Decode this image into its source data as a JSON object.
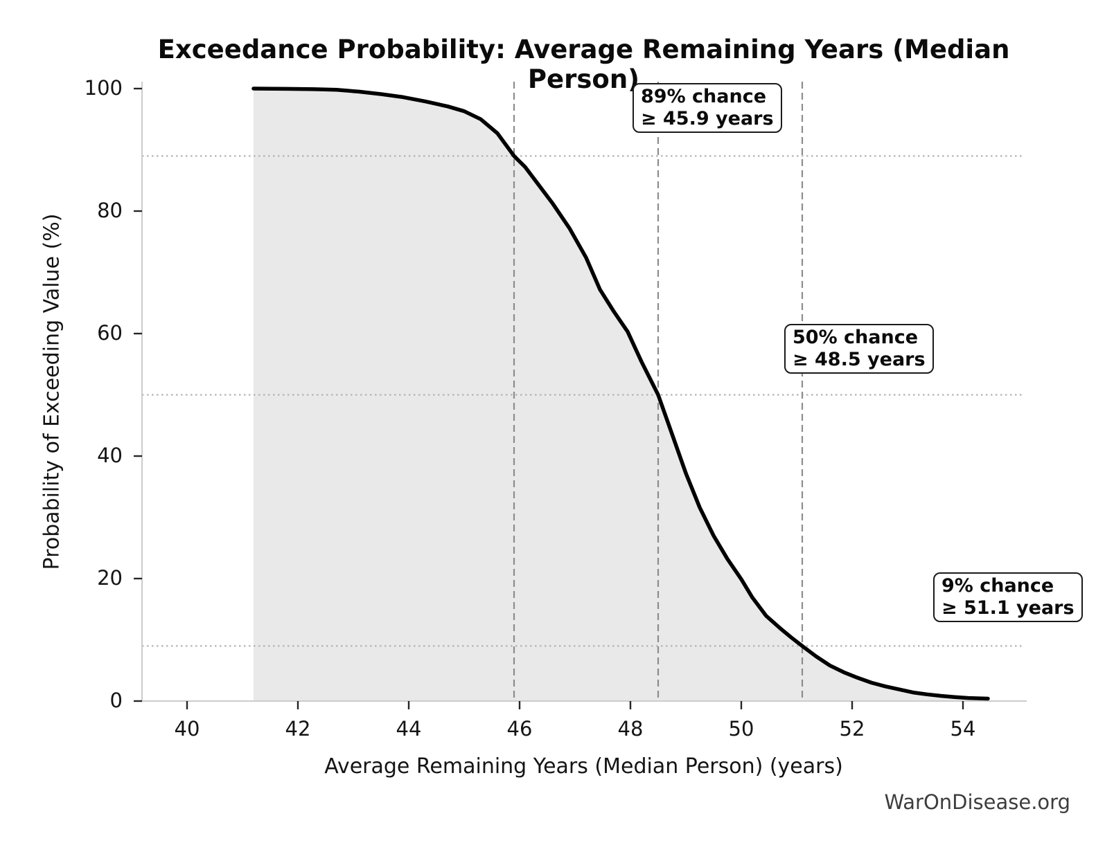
{
  "title": "Exceedance Probability: Average Remaining Years (Median Person)",
  "footer": "WarOnDisease.org",
  "chart_data": {
    "type": "area",
    "title": "Exceedance Probability: Average Remaining Years (Median Person)",
    "xlabel": "Average Remaining Years (Median Person) (years)",
    "ylabel": "Probability of Exceeding Value (%)",
    "xlim": [
      39.2,
      55.1
    ],
    "ylim": [
      0,
      101
    ],
    "x_ticks": [
      40,
      42,
      44,
      46,
      48,
      50,
      52,
      54
    ],
    "y_ticks": [
      0,
      20,
      40,
      60,
      80,
      100
    ],
    "grid": "off",
    "legend": "none",
    "line_color": "#000000",
    "fill_color": "#e9e9e9",
    "dashed_line_color": "#8c8c8c",
    "dotted_line_color": "#b3b3b3",
    "spine_color": "#cccccc",
    "curve": {
      "name": "exceedance probability",
      "x_units": "years",
      "y_units": "percent",
      "points": [
        [
          41.2,
          100
        ],
        [
          41.8,
          99.95
        ],
        [
          42.3,
          99.9
        ],
        [
          42.7,
          99.8
        ],
        [
          43.1,
          99.5
        ],
        [
          43.5,
          99.1
        ],
        [
          43.9,
          98.6
        ],
        [
          44.3,
          97.9
        ],
        [
          44.7,
          97.1
        ],
        [
          45.0,
          96.3
        ],
        [
          45.3,
          95.0
        ],
        [
          45.6,
          92.7
        ],
        [
          45.9,
          89.0
        ],
        [
          46.1,
          87.2
        ],
        [
          46.35,
          84.2
        ],
        [
          46.6,
          81.2
        ],
        [
          46.9,
          77.2
        ],
        [
          47.2,
          72.4
        ],
        [
          47.45,
          67.2
        ],
        [
          47.7,
          63.6
        ],
        [
          47.95,
          60.3
        ],
        [
          48.2,
          55.4
        ],
        [
          48.5,
          50.0
        ],
        [
          48.75,
          43.6
        ],
        [
          49.0,
          37.2
        ],
        [
          49.25,
          31.6
        ],
        [
          49.5,
          27.0
        ],
        [
          49.75,
          23.2
        ],
        [
          50.0,
          19.9
        ],
        [
          50.2,
          16.9
        ],
        [
          50.45,
          13.9
        ],
        [
          50.7,
          11.9
        ],
        [
          50.9,
          10.4
        ],
        [
          51.1,
          9.0
        ],
        [
          51.35,
          7.3
        ],
        [
          51.6,
          5.8
        ],
        [
          51.85,
          4.7
        ],
        [
          52.1,
          3.8
        ],
        [
          52.35,
          3.0
        ],
        [
          52.6,
          2.4
        ],
        [
          52.85,
          1.9
        ],
        [
          53.1,
          1.4
        ],
        [
          53.35,
          1.1
        ],
        [
          53.6,
          0.85
        ],
        [
          53.85,
          0.65
        ],
        [
          54.1,
          0.5
        ],
        [
          54.45,
          0.4
        ]
      ]
    },
    "reference_lines": [
      {
        "value_years": 45.9,
        "probability_pct": 89
      },
      {
        "value_years": 48.5,
        "probability_pct": 50
      },
      {
        "value_years": 51.1,
        "probability_pct": 9
      }
    ],
    "annotations": [
      {
        "line1": "89% chance",
        "line2": "≥ 45.9 years"
      },
      {
        "line1": "50% chance",
        "line2": "≥ 48.5 years"
      },
      {
        "line1": "9% chance",
        "line2": "≥ 51.1 years"
      }
    ]
  }
}
